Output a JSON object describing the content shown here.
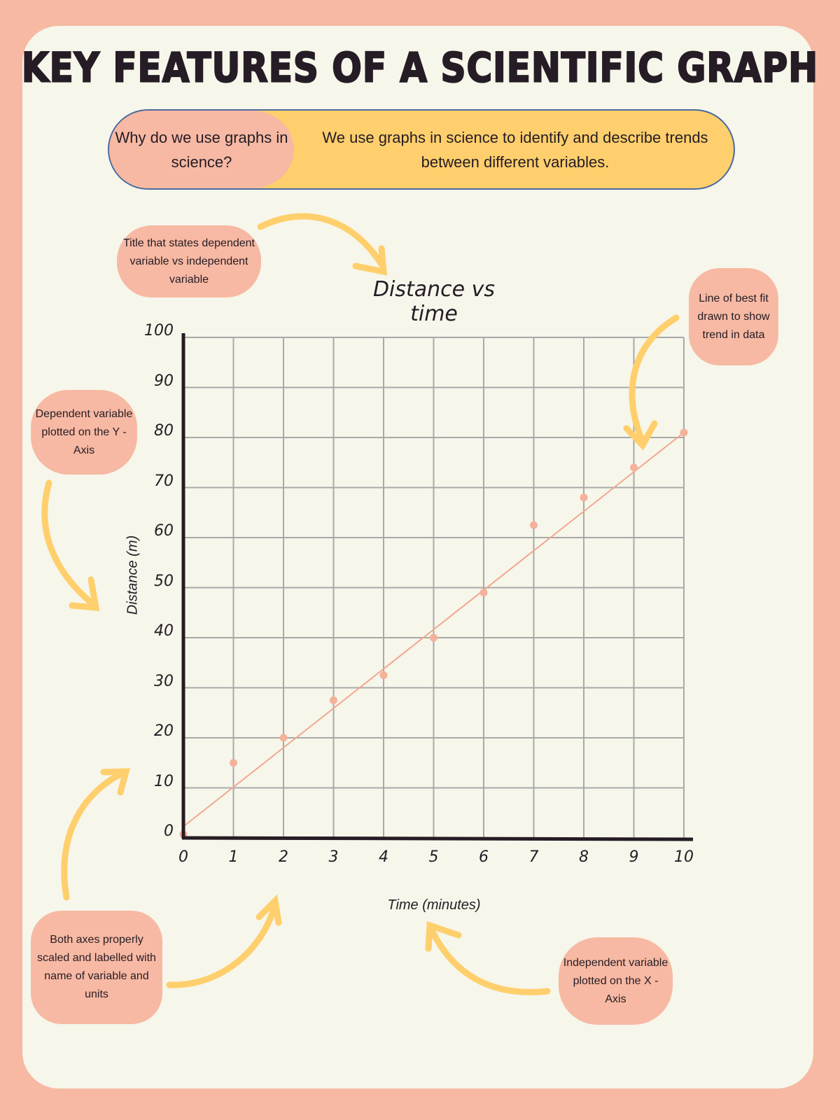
{
  "header": {
    "title": "KEY FEATURES OF A SCIENTIFIC GRAPH"
  },
  "intro": {
    "question": "Why do we use graphs in science?",
    "answer": "We use graphs in science to identify and describe trends between different variables."
  },
  "annotations": {
    "title_note": "Title that states dependent variable vs independent variable",
    "best_fit_note": "Line of best fit drawn to show trend in data",
    "y_axis_note": "Dependent variable plotted on the Y - Axis",
    "axes_note": "Both axes properly scaled and labelled with name of variable and units",
    "x_axis_note": "Independent variable plotted on the X - Axis"
  },
  "colors": {
    "border": "#f7b9a3",
    "card": "#f6f6ea",
    "accent_yellow": "#fecf6c",
    "accent_pink": "#f7b9a3",
    "text": "#261c25",
    "grid": "#a9a9a9",
    "outline_blue": "#4a6aa0"
  },
  "chart_data": {
    "type": "scatter",
    "title": "Distance vs time",
    "xlabel": "Time (minutes)",
    "ylabel": "Distance (m)",
    "x": [
      0,
      1,
      2,
      3,
      4,
      5,
      6,
      7,
      8,
      9,
      10
    ],
    "y": [
      0,
      15,
      20,
      27.5,
      32.5,
      40,
      49,
      62.5,
      68,
      74,
      81
    ],
    "xlim": [
      0,
      10
    ],
    "ylim": [
      0,
      100
    ],
    "xticks": [
      "0",
      "1",
      "2",
      "3",
      "4",
      "5",
      "6",
      "7",
      "8",
      "9",
      "10"
    ],
    "yticks": [
      "0",
      "10",
      "20",
      "30",
      "40",
      "50",
      "60",
      "70",
      "80",
      "90",
      "100"
    ],
    "grid": true,
    "legend": null,
    "best_fit_line": {
      "start": [
        0,
        2.5
      ],
      "end": [
        10,
        81
      ]
    }
  }
}
